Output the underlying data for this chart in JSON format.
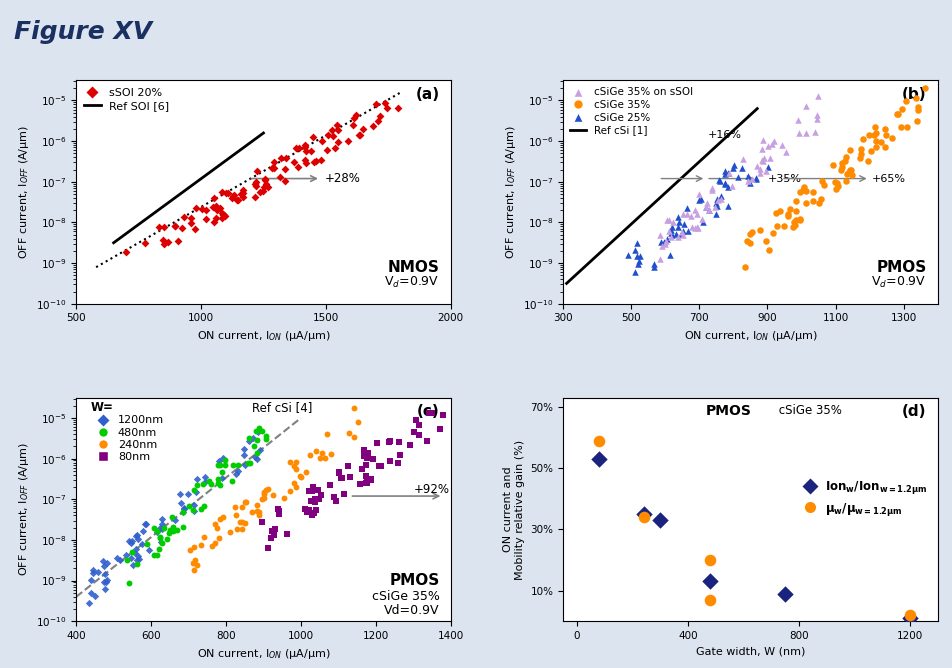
{
  "title": "Figure XV",
  "title_color": "#1a3060",
  "bg_color": "#dce4f0",
  "panel_bg": "#ffffff",
  "panel_a": {
    "label": "(a)",
    "xlabel": "ON current, I$_{ON}$ (μA/μm)",
    "ylabel": "OFF current, I$_{OFF}$ (A/μm)",
    "xlim": [
      500,
      2000
    ],
    "xticks": [
      500,
      1000,
      1500,
      2000
    ],
    "annotation": "+28%",
    "ref_label": "Ref SOI [6]",
    "data_label": "sSOI 20%",
    "data_color": "#dd0000",
    "note1": "NMOS",
    "note2": "V$_d$=0.9V"
  },
  "panel_b": {
    "label": "(b)",
    "xlabel": "ON current, I$_{ON}$ (μA/μm)",
    "ylabel": "OFF current, I$_{OFF}$ (A/μm)",
    "xlim": [
      300,
      1400
    ],
    "xticks": [
      300,
      500,
      700,
      900,
      1100,
      1300
    ],
    "annotation1": "+16%",
    "annotation2": "+35%",
    "annotation3": "+65%",
    "ref_label": "Ref cSi [1]",
    "note1": "PMOS",
    "note2": "V$_d$=0.9V",
    "color_ssoi": "#c8a0e0",
    "color_35": "#ff8c00",
    "color_25": "#2050cc",
    "label_ssoi": "cSiGe 35% on sSOI",
    "label_35": "cSiGe 35%",
    "label_25": "cSiGe 25%"
  },
  "panel_c": {
    "label": "(c)",
    "xlabel": "ON current, I$_{ON}$ (μA/μm)",
    "ylabel": "OFF current, I$_{OFF}$ (A/μm)",
    "xlim": [
      400,
      1400
    ],
    "xticks": [
      400,
      600,
      800,
      1000,
      1200,
      1400
    ],
    "annotation": "+92%",
    "ref_label": "Ref cSi [4]",
    "note1": "PMOS",
    "note2": "cSiGe 35%",
    "note3": "Vd=0.9V",
    "color_1200": "#3060cc",
    "color_480": "#00cc00",
    "color_240": "#ff8c00",
    "color_80": "#800080",
    "label_1200": "1200nm",
    "label_480": "480nm",
    "label_240": "240nm",
    "label_80": "80nm"
  },
  "panel_d": {
    "label": "(d)",
    "xlabel": "Gate width, W (nm)",
    "ylabel": "ON current and\nMobility relative gain (%)",
    "xlim": [
      -50,
      1300
    ],
    "ylim": [
      0,
      73
    ],
    "xticks": [
      0,
      400,
      800,
      1200
    ],
    "ytick_labels": [
      "10%",
      "30%",
      "50%",
      "70%"
    ],
    "ytick_vals": [
      10,
      30,
      50,
      70
    ],
    "note1": "PMOS",
    "note2": "cSiGe 35%",
    "color_ion": "#1a237e",
    "color_mu": "#ff8c00",
    "ion_x": [
      80,
      240,
      300,
      480,
      750,
      1200
    ],
    "ion_y": [
      53,
      35,
      33,
      13,
      9,
      1
    ],
    "mu_x": [
      80,
      240,
      480,
      480,
      1200
    ],
    "mu_y": [
      59,
      34,
      20,
      7,
      2
    ]
  }
}
